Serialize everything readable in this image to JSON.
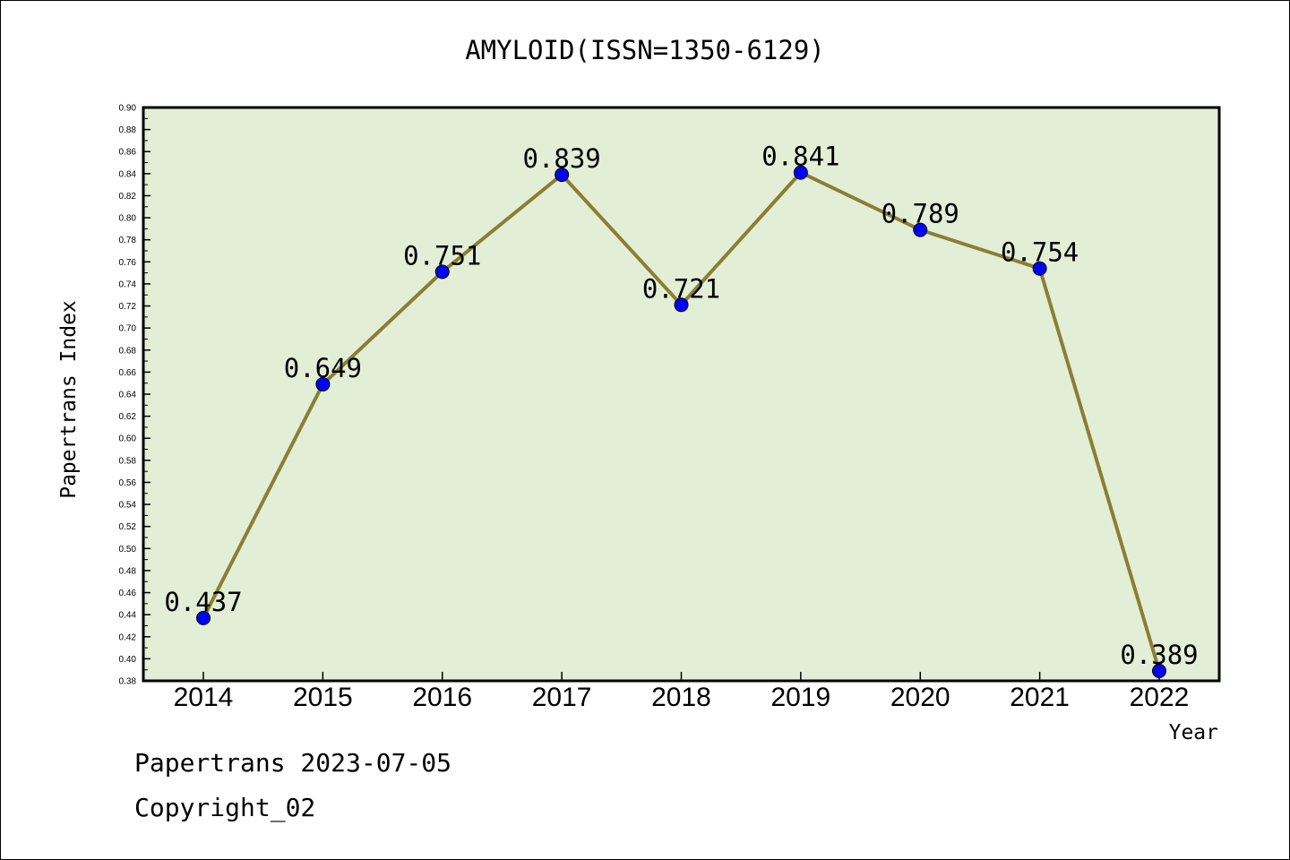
{
  "footer": {
    "line1": "Papertrans 2023-07-05",
    "line2": "Copyright_02"
  },
  "colors": {
    "plot_background": "#e2efd6",
    "line": "#8b7e34",
    "marker": "#0000ff"
  },
  "chart_data": {
    "type": "line",
    "title": "AMYLOID(ISSN=1350-6129)",
    "xlabel": "Year",
    "ylabel": "Papertrans Index",
    "categories": [
      "2014",
      "2015",
      "2016",
      "2017",
      "2018",
      "2019",
      "2020",
      "2021",
      "2022"
    ],
    "series": [
      {
        "values": [
          0.437,
          0.649,
          0.751,
          0.839,
          0.721,
          0.841,
          0.789,
          0.754,
          0.389
        ],
        "labels": [
          "0.437",
          "0.649",
          "0.751",
          "0.839",
          "0.721",
          "0.841",
          "0.789",
          "0.754",
          "0.389"
        ]
      }
    ],
    "ylim": [
      0.38,
      0.9
    ],
    "yticks": [
      "0.38",
      "0.40",
      "0.42",
      "0.44",
      "0.46",
      "0.48",
      "0.50",
      "0.52",
      "0.54",
      "0.56",
      "0.58",
      "0.60",
      "0.62",
      "0.64",
      "0.66",
      "0.68",
      "0.70",
      "0.72",
      "0.74",
      "0.76",
      "0.78",
      "0.80",
      "0.82",
      "0.84",
      "0.86",
      "0.88",
      "0.90"
    ],
    "grid": false,
    "legend": "none"
  }
}
